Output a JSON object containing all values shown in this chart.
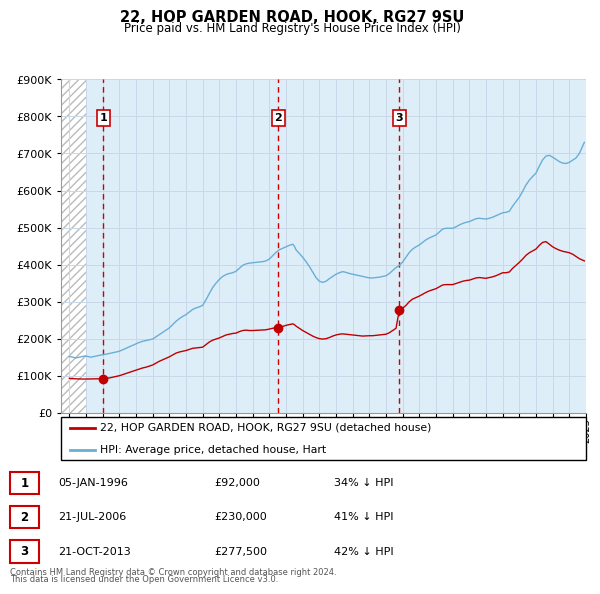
{
  "title": "22, HOP GARDEN ROAD, HOOK, RG27 9SU",
  "subtitle": "Price paid vs. HM Land Registry's House Price Index (HPI)",
  "legend_line1": "22, HOP GARDEN ROAD, HOOK, RG27 9SU (detached house)",
  "legend_line2": "HPI: Average price, detached house, Hart",
  "footer1": "Contains HM Land Registry data © Crown copyright and database right 2024.",
  "footer2": "This data is licensed under the Open Government Licence v3.0.",
  "transactions": [
    {
      "num": 1,
      "date": "05-JAN-1996",
      "price": "£92,000",
      "pct": "34% ↓ HPI",
      "year": 1996.03
    },
    {
      "num": 2,
      "date": "21-JUL-2006",
      "price": "£230,000",
      "pct": "41% ↓ HPI",
      "year": 2006.55
    },
    {
      "num": 3,
      "date": "21-OCT-2013",
      "price": "£277,500",
      "pct": "42% ↓ HPI",
      "year": 2013.8
    }
  ],
  "transaction_values": [
    92000,
    230000,
    277500
  ],
  "hpi_color": "#6aaed6",
  "price_color": "#c00000",
  "dashed_line_color": "#cc0000",
  "grid_color": "#c8d8e8",
  "ylim": [
    0,
    900000
  ],
  "xlim_start": 1993.5,
  "xlim_end": 2025.0,
  "hatch_end": 1995.0,
  "hpi_data": [
    [
      1994.0,
      152000
    ],
    [
      1994.1,
      151000
    ],
    [
      1994.2,
      150000
    ],
    [
      1994.3,
      149000
    ],
    [
      1994.4,
      148000
    ],
    [
      1994.5,
      149000
    ],
    [
      1994.6,
      150000
    ],
    [
      1994.7,
      151000
    ],
    [
      1994.8,
      152000
    ],
    [
      1994.9,
      153000
    ],
    [
      1995.0,
      153000
    ],
    [
      1995.1,
      152000
    ],
    [
      1995.2,
      151000
    ],
    [
      1995.3,
      150000
    ],
    [
      1995.4,
      151000
    ],
    [
      1995.5,
      152000
    ],
    [
      1995.6,
      153000
    ],
    [
      1995.7,
      154000
    ],
    [
      1995.8,
      155000
    ],
    [
      1995.9,
      156000
    ],
    [
      1996.0,
      157000
    ],
    [
      1996.2,
      158000
    ],
    [
      1996.4,
      160000
    ],
    [
      1996.6,
      162000
    ],
    [
      1996.8,
      164000
    ],
    [
      1997.0,
      166000
    ],
    [
      1997.2,
      170000
    ],
    [
      1997.4,
      174000
    ],
    [
      1997.6,
      178000
    ],
    [
      1997.8,
      182000
    ],
    [
      1998.0,
      186000
    ],
    [
      1998.2,
      190000
    ],
    [
      1998.4,
      193000
    ],
    [
      1998.6,
      195000
    ],
    [
      1998.8,
      197000
    ],
    [
      1999.0,
      199000
    ],
    [
      1999.2,
      205000
    ],
    [
      1999.4,
      211000
    ],
    [
      1999.6,
      217000
    ],
    [
      1999.8,
      223000
    ],
    [
      2000.0,
      229000
    ],
    [
      2000.2,
      238000
    ],
    [
      2000.4,
      247000
    ],
    [
      2000.6,
      254000
    ],
    [
      2000.8,
      260000
    ],
    [
      2001.0,
      265000
    ],
    [
      2001.2,
      272000
    ],
    [
      2001.4,
      279000
    ],
    [
      2001.6,
      283000
    ],
    [
      2001.8,
      286000
    ],
    [
      2002.0,
      290000
    ],
    [
      2002.2,
      305000
    ],
    [
      2002.4,
      322000
    ],
    [
      2002.6,
      338000
    ],
    [
      2002.8,
      350000
    ],
    [
      2003.0,
      360000
    ],
    [
      2003.2,
      368000
    ],
    [
      2003.4,
      373000
    ],
    [
      2003.6,
      376000
    ],
    [
      2003.8,
      378000
    ],
    [
      2004.0,
      382000
    ],
    [
      2004.2,
      390000
    ],
    [
      2004.4,
      398000
    ],
    [
      2004.6,
      402000
    ],
    [
      2004.8,
      404000
    ],
    [
      2005.0,
      405000
    ],
    [
      2005.2,
      406000
    ],
    [
      2005.4,
      407000
    ],
    [
      2005.6,
      408000
    ],
    [
      2005.8,
      410000
    ],
    [
      2006.0,
      415000
    ],
    [
      2006.2,
      424000
    ],
    [
      2006.4,
      433000
    ],
    [
      2006.6,
      440000
    ],
    [
      2006.8,
      444000
    ],
    [
      2007.0,
      448000
    ],
    [
      2007.2,
      452000
    ],
    [
      2007.4,
      455000
    ],
    [
      2007.5,
      450000
    ],
    [
      2007.6,
      440000
    ],
    [
      2007.8,
      430000
    ],
    [
      2008.0,
      420000
    ],
    [
      2008.2,
      408000
    ],
    [
      2008.4,
      395000
    ],
    [
      2008.6,
      380000
    ],
    [
      2008.8,
      365000
    ],
    [
      2009.0,
      355000
    ],
    [
      2009.2,
      352000
    ],
    [
      2009.4,
      355000
    ],
    [
      2009.6,
      362000
    ],
    [
      2009.8,
      368000
    ],
    [
      2010.0,
      374000
    ],
    [
      2010.2,
      378000
    ],
    [
      2010.4,
      381000
    ],
    [
      2010.6,
      379000
    ],
    [
      2010.8,
      376000
    ],
    [
      2011.0,
      374000
    ],
    [
      2011.2,
      372000
    ],
    [
      2011.4,
      370000
    ],
    [
      2011.6,
      368000
    ],
    [
      2011.8,
      366000
    ],
    [
      2012.0,
      364000
    ],
    [
      2012.2,
      364000
    ],
    [
      2012.4,
      365000
    ],
    [
      2012.6,
      366000
    ],
    [
      2012.8,
      368000
    ],
    [
      2013.0,
      370000
    ],
    [
      2013.2,
      376000
    ],
    [
      2013.4,
      384000
    ],
    [
      2013.6,
      392000
    ],
    [
      2013.8,
      398000
    ],
    [
      2014.0,
      407000
    ],
    [
      2014.2,
      420000
    ],
    [
      2014.4,
      433000
    ],
    [
      2014.6,
      442000
    ],
    [
      2014.8,
      448000
    ],
    [
      2015.0,
      453000
    ],
    [
      2015.2,
      460000
    ],
    [
      2015.4,
      467000
    ],
    [
      2015.6,
      472000
    ],
    [
      2015.8,
      476000
    ],
    [
      2016.0,
      480000
    ],
    [
      2016.2,
      488000
    ],
    [
      2016.4,
      496000
    ],
    [
      2016.6,
      498000
    ],
    [
      2016.8,
      498000
    ],
    [
      2017.0,
      498000
    ],
    [
      2017.2,
      502000
    ],
    [
      2017.4,
      507000
    ],
    [
      2017.6,
      511000
    ],
    [
      2017.8,
      514000
    ],
    [
      2018.0,
      516000
    ],
    [
      2018.2,
      520000
    ],
    [
      2018.4,
      524000
    ],
    [
      2018.6,
      525000
    ],
    [
      2018.8,
      524000
    ],
    [
      2019.0,
      523000
    ],
    [
      2019.2,
      525000
    ],
    [
      2019.4,
      528000
    ],
    [
      2019.6,
      532000
    ],
    [
      2019.8,
      536000
    ],
    [
      2020.0,
      540000
    ],
    [
      2020.2,
      541000
    ],
    [
      2020.4,
      544000
    ],
    [
      2020.6,
      558000
    ],
    [
      2020.8,
      570000
    ],
    [
      2021.0,
      582000
    ],
    [
      2021.2,
      598000
    ],
    [
      2021.4,
      615000
    ],
    [
      2021.6,
      628000
    ],
    [
      2021.8,
      638000
    ],
    [
      2022.0,
      647000
    ],
    [
      2022.2,
      666000
    ],
    [
      2022.4,
      683000
    ],
    [
      2022.6,
      693000
    ],
    [
      2022.8,
      695000
    ],
    [
      2023.0,
      690000
    ],
    [
      2023.2,
      684000
    ],
    [
      2023.4,
      678000
    ],
    [
      2023.6,
      674000
    ],
    [
      2023.8,
      673000
    ],
    [
      2024.0,
      676000
    ],
    [
      2024.2,
      682000
    ],
    [
      2024.4,
      688000
    ],
    [
      2024.6,
      700000
    ],
    [
      2024.8,
      720000
    ],
    [
      2024.9,
      730000
    ]
  ],
  "price_data": [
    [
      1994.0,
      93000
    ],
    [
      1994.2,
      92000
    ],
    [
      1994.5,
      91500
    ],
    [
      1994.8,
      91000
    ],
    [
      1995.0,
      91000
    ],
    [
      1995.2,
      91200
    ],
    [
      1995.4,
      91400
    ],
    [
      1995.6,
      91500
    ],
    [
      1995.8,
      91800
    ],
    [
      1996.0,
      92000
    ],
    [
      1996.03,
      92000
    ],
    [
      1996.2,
      93000
    ],
    [
      1996.4,
      94000
    ],
    [
      1996.6,
      96000
    ],
    [
      1996.8,
      98000
    ],
    [
      1997.0,
      100000
    ],
    [
      1997.2,
      103000
    ],
    [
      1997.4,
      106000
    ],
    [
      1997.6,
      109000
    ],
    [
      1997.8,
      112000
    ],
    [
      1998.0,
      115000
    ],
    [
      1998.2,
      118000
    ],
    [
      1998.4,
      121000
    ],
    [
      1998.6,
      123000
    ],
    [
      1998.8,
      126000
    ],
    [
      1999.0,
      129000
    ],
    [
      1999.2,
      134000
    ],
    [
      1999.4,
      139000
    ],
    [
      1999.6,
      143000
    ],
    [
      1999.8,
      147000
    ],
    [
      2000.0,
      151000
    ],
    [
      2000.2,
      156000
    ],
    [
      2000.4,
      161000
    ],
    [
      2000.6,
      164000
    ],
    [
      2000.8,
      166000
    ],
    [
      2001.0,
      168000
    ],
    [
      2001.2,
      171000
    ],
    [
      2001.4,
      174000
    ],
    [
      2001.6,
      175000
    ],
    [
      2001.8,
      176000
    ],
    [
      2002.0,
      177000
    ],
    [
      2002.2,
      184000
    ],
    [
      2002.4,
      191000
    ],
    [
      2002.6,
      196000
    ],
    [
      2002.8,
      199000
    ],
    [
      2003.0,
      202000
    ],
    [
      2003.2,
      206000
    ],
    [
      2003.4,
      210000
    ],
    [
      2003.6,
      212000
    ],
    [
      2003.8,
      214000
    ],
    [
      2004.0,
      215000
    ],
    [
      2004.2,
      219000
    ],
    [
      2004.4,
      222000
    ],
    [
      2004.6,
      223000
    ],
    [
      2004.8,
      222000
    ],
    [
      2005.0,
      222000
    ],
    [
      2005.2,
      222500
    ],
    [
      2005.4,
      223000
    ],
    [
      2005.6,
      223500
    ],
    [
      2005.8,
      224000
    ],
    [
      2006.0,
      226000
    ],
    [
      2006.2,
      228000
    ],
    [
      2006.4,
      230500
    ],
    [
      2006.55,
      230000
    ],
    [
      2006.6,
      231000
    ],
    [
      2006.8,
      233000
    ],
    [
      2007.0,
      236000
    ],
    [
      2007.2,
      238000
    ],
    [
      2007.4,
      240000
    ],
    [
      2007.5,
      238000
    ],
    [
      2007.6,
      234000
    ],
    [
      2007.8,
      228000
    ],
    [
      2008.0,
      222000
    ],
    [
      2008.2,
      217000
    ],
    [
      2008.4,
      212000
    ],
    [
      2008.6,
      207000
    ],
    [
      2008.8,
      203000
    ],
    [
      2009.0,
      200000
    ],
    [
      2009.2,
      199000
    ],
    [
      2009.4,
      200000
    ],
    [
      2009.6,
      203000
    ],
    [
      2009.8,
      207000
    ],
    [
      2010.0,
      210000
    ],
    [
      2010.2,
      212000
    ],
    [
      2010.4,
      213000
    ],
    [
      2010.6,
      212000
    ],
    [
      2010.8,
      211000
    ],
    [
      2011.0,
      210000
    ],
    [
      2011.2,
      209000
    ],
    [
      2011.4,
      208000
    ],
    [
      2011.6,
      207000
    ],
    [
      2011.8,
      207500
    ],
    [
      2012.0,
      208000
    ],
    [
      2012.2,
      208000
    ],
    [
      2012.4,
      209000
    ],
    [
      2012.6,
      210000
    ],
    [
      2012.8,
      211000
    ],
    [
      2013.0,
      212000
    ],
    [
      2013.2,
      216000
    ],
    [
      2013.4,
      222000
    ],
    [
      2013.6,
      228000
    ],
    [
      2013.8,
      277500
    ],
    [
      2013.82,
      277500
    ],
    [
      2014.0,
      282000
    ],
    [
      2014.2,
      290000
    ],
    [
      2014.4,
      300000
    ],
    [
      2014.6,
      307000
    ],
    [
      2014.8,
      311000
    ],
    [
      2015.0,
      315000
    ],
    [
      2015.2,
      320000
    ],
    [
      2015.4,
      325000
    ],
    [
      2015.6,
      329000
    ],
    [
      2015.8,
      332000
    ],
    [
      2016.0,
      335000
    ],
    [
      2016.2,
      340000
    ],
    [
      2016.4,
      345000
    ],
    [
      2016.6,
      346000
    ],
    [
      2016.8,
      346000
    ],
    [
      2017.0,
      346000
    ],
    [
      2017.2,
      349000
    ],
    [
      2017.4,
      352000
    ],
    [
      2017.6,
      355000
    ],
    [
      2017.8,
      357000
    ],
    [
      2018.0,
      358000
    ],
    [
      2018.2,
      361000
    ],
    [
      2018.4,
      364000
    ],
    [
      2018.6,
      365000
    ],
    [
      2018.8,
      364000
    ],
    [
      2019.0,
      363000
    ],
    [
      2019.2,
      365000
    ],
    [
      2019.4,
      367000
    ],
    [
      2019.6,
      370000
    ],
    [
      2019.8,
      374000
    ],
    [
      2020.0,
      378000
    ],
    [
      2020.2,
      378000
    ],
    [
      2020.4,
      380000
    ],
    [
      2020.6,
      390000
    ],
    [
      2020.8,
      398000
    ],
    [
      2021.0,
      406000
    ],
    [
      2021.2,
      415000
    ],
    [
      2021.4,
      425000
    ],
    [
      2021.6,
      432000
    ],
    [
      2021.8,
      437000
    ],
    [
      2022.0,
      442000
    ],
    [
      2022.2,
      452000
    ],
    [
      2022.4,
      460000
    ],
    [
      2022.6,
      462000
    ],
    [
      2022.8,
      455000
    ],
    [
      2023.0,
      448000
    ],
    [
      2023.2,
      443000
    ],
    [
      2023.4,
      439000
    ],
    [
      2023.6,
      436000
    ],
    [
      2023.8,
      434000
    ],
    [
      2024.0,
      432000
    ],
    [
      2024.2,
      428000
    ],
    [
      2024.4,
      422000
    ],
    [
      2024.6,
      416000
    ],
    [
      2024.8,
      412000
    ],
    [
      2024.9,
      410000
    ]
  ]
}
